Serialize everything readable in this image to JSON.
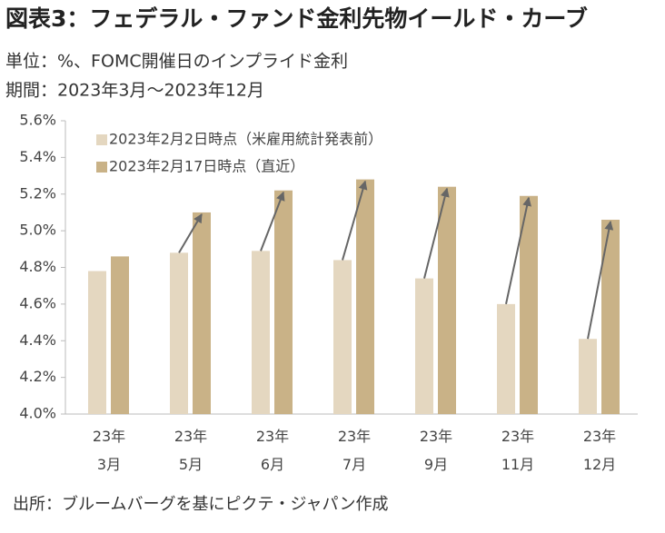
{
  "chart_data": {
    "type": "bar",
    "title": "図表3：フェデラル・ファンド金利先物イールド・カーブ",
    "subtitle": [
      "単位：%、FOMC開催日のインプライド金利",
      "期間：2023年3月～2023年12月"
    ],
    "source": "出所：ブルームバーグを基にピクテ・ジャパン作成",
    "categories": [
      "23年\n3月",
      "23年\n5月",
      "23年\n6月",
      "23年\n7月",
      "23年\n9月",
      "23年\n11月",
      "23年\n12月"
    ],
    "series": [
      {
        "name": "2023年2月2日時点（米雇用統計発表前）",
        "color": "#e4d7c0",
        "values": [
          4.78,
          4.88,
          4.89,
          4.84,
          4.74,
          4.6,
          4.41
        ]
      },
      {
        "name": "2023年2月17日時点（直近）",
        "color": "#c9b287",
        "values": [
          4.86,
          5.1,
          5.22,
          5.28,
          5.24,
          5.19,
          5.06
        ]
      }
    ],
    "ylim": [
      4.0,
      5.6
    ],
    "yticks": [
      {
        "value": 4.0,
        "label": "4.0%"
      },
      {
        "value": 4.2,
        "label": "4.2%"
      },
      {
        "value": 4.4,
        "label": "4.4%"
      },
      {
        "value": 4.6,
        "label": "4.6%"
      },
      {
        "value": 4.8,
        "label": "4.8%"
      },
      {
        "value": 5.0,
        "label": "5.0%"
      },
      {
        "value": 5.2,
        "label": "5.2%"
      },
      {
        "value": 5.4,
        "label": "5.4%"
      },
      {
        "value": 5.6,
        "label": "5.6%"
      }
    ],
    "legend": "upper left",
    "grid": false
  }
}
